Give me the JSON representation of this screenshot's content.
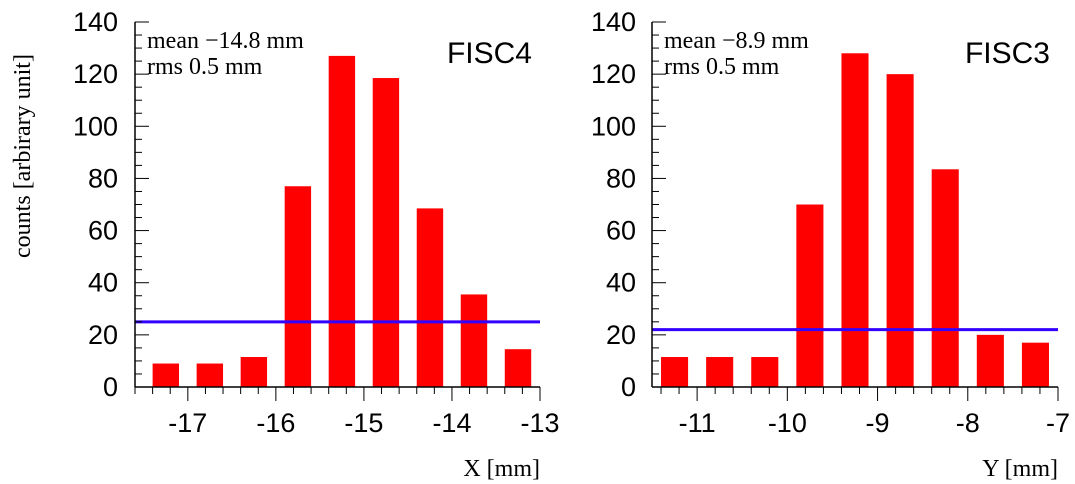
{
  "ylabel": "counts [arbirary unit]",
  "colors": {
    "bar": "#ff0000",
    "line": "#3300ff",
    "axis": "#000000"
  },
  "chart_data": [
    {
      "type": "bar",
      "label": "FISC4",
      "stats": {
        "mean": "mean −14.8 mm",
        "rms": "rms 0.5 mm"
      },
      "xlabel": "X [mm]",
      "xlim": [
        -17.6,
        -13
      ],
      "ylim": [
        0,
        140
      ],
      "xticks": [
        -17,
        -16,
        -15,
        -14,
        -13
      ],
      "xtick_labels": [
        "-17",
        "-16",
        "-15",
        "-14",
        "-13"
      ],
      "yticks": [
        0,
        20,
        40,
        60,
        80,
        100,
        120,
        140
      ],
      "ytick_labels": [
        "0",
        "20",
        "40",
        "60",
        "80",
        "100",
        "120",
        "140"
      ],
      "x": [
        -17.25,
        -16.75,
        -16.25,
        -15.75,
        -15.25,
        -14.75,
        -14.25,
        -13.75,
        -13.25
      ],
      "values": [
        9,
        9,
        11.5,
        77,
        127,
        118.5,
        68.5,
        35.5,
        14.5
      ],
      "bar_width": 0.3,
      "hline": 25
    },
    {
      "type": "bar",
      "label": "FISC3",
      "stats": {
        "mean": "mean −8.9 mm",
        "rms": "rms 0.5 mm"
      },
      "xlabel": "Y [mm]",
      "xlim": [
        -11.5,
        -7
      ],
      "ylim": [
        0,
        140
      ],
      "xticks": [
        -11,
        -10,
        -9,
        -8,
        -7
      ],
      "xtick_labels": [
        "-11",
        "-10",
        "-9",
        "-8",
        "-7"
      ],
      "yticks": [
        0,
        20,
        40,
        60,
        80,
        100,
        120,
        140
      ],
      "ytick_labels": [
        "0",
        "20",
        "40",
        "60",
        "80",
        "100",
        "120",
        "140"
      ],
      "x": [
        -11.25,
        -10.75,
        -10.25,
        -9.75,
        -9.25,
        -8.75,
        -8.25,
        -7.75,
        -7.25
      ],
      "values": [
        11.5,
        11.5,
        11.5,
        70,
        128,
        120,
        83.5,
        20,
        17
      ],
      "bar_width": 0.3,
      "hline": 22
    }
  ]
}
